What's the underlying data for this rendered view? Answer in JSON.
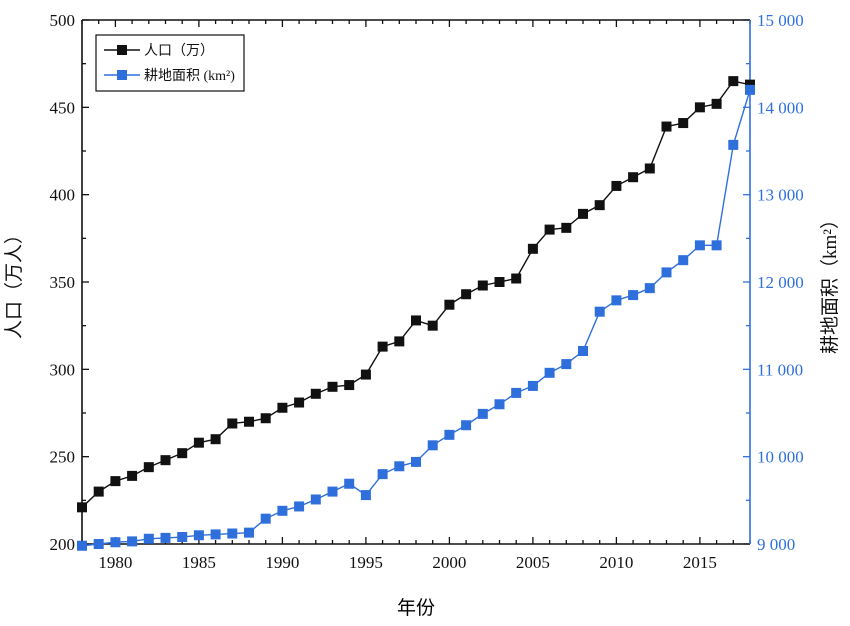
{
  "chart_data": {
    "type": "line",
    "xlabel": "年份",
    "ylabel": "人口（万人）",
    "y2label": "耕地面积（km²）",
    "xlim": [
      1978,
      2018
    ],
    "ylim": [
      200,
      500
    ],
    "y2lim": [
      9000,
      15000
    ],
    "x_ticks": [
      1980,
      1985,
      1990,
      1995,
      2000,
      2005,
      2010,
      2015
    ],
    "y_ticks": [
      200,
      250,
      300,
      350,
      400,
      450,
      500
    ],
    "y2_ticks": [
      9000,
      10000,
      11000,
      12000,
      13000,
      14000,
      15000
    ],
    "y2_tick_labels": [
      "9 000",
      "10 000",
      "11 000",
      "12 000",
      "13 000",
      "14 000",
      "15 000"
    ],
    "grid": false,
    "legend_position": "top-left",
    "colors": {
      "population": "#111111",
      "farmland": "#2f6fdc",
      "right_axis": "#2f6fdc"
    },
    "series": [
      {
        "name": "人口（万）",
        "axis": "left",
        "marker": "square",
        "color": "#111111",
        "x": [
          1978,
          1979,
          1980,
          1981,
          1982,
          1983,
          1984,
          1985,
          1986,
          1987,
          1988,
          1989,
          1990,
          1991,
          1992,
          1993,
          1994,
          1995,
          1996,
          1997,
          1998,
          1999,
          2000,
          2001,
          2002,
          2003,
          2004,
          2005,
          2006,
          2007,
          2008,
          2009,
          2010,
          2011,
          2012,
          2013,
          2014,
          2015,
          2016,
          2017,
          2018
        ],
        "values": [
          221,
          230,
          236,
          239,
          244,
          248,
          252,
          258,
          260,
          269,
          270,
          272,
          278,
          281,
          286,
          290,
          291,
          297,
          313,
          316,
          328,
          325,
          337,
          343,
          348,
          350,
          352,
          369,
          380,
          381,
          389,
          394,
          405,
          410,
          415,
          439,
          441,
          450,
          452,
          465,
          463
        ]
      },
      {
        "name": "耕地面积 (km²)",
        "axis": "right",
        "marker": "square",
        "color": "#2f6fdc",
        "x": [
          1978,
          1979,
          1980,
          1981,
          1982,
          1983,
          1984,
          1985,
          1986,
          1987,
          1988,
          1989,
          1990,
          1991,
          1992,
          1993,
          1994,
          1995,
          1996,
          1997,
          1998,
          1999,
          2000,
          2001,
          2002,
          2003,
          2004,
          2005,
          2006,
          2007,
          2008,
          2009,
          2010,
          2011,
          2012,
          2013,
          2014,
          2015,
          2016,
          2017,
          2018
        ],
        "values": [
          8980,
          9000,
          9020,
          9030,
          9060,
          9070,
          9080,
          9100,
          9110,
          9120,
          9130,
          9290,
          9380,
          9430,
          9510,
          9600,
          9690,
          9560,
          9800,
          9890,
          9940,
          10130,
          10250,
          10360,
          10490,
          10600,
          10730,
          10810,
          10960,
          11060,
          11210,
          11660,
          11790,
          11850,
          11930,
          12110,
          12250,
          12420,
          12420,
          13570,
          14200
        ]
      }
    ]
  }
}
